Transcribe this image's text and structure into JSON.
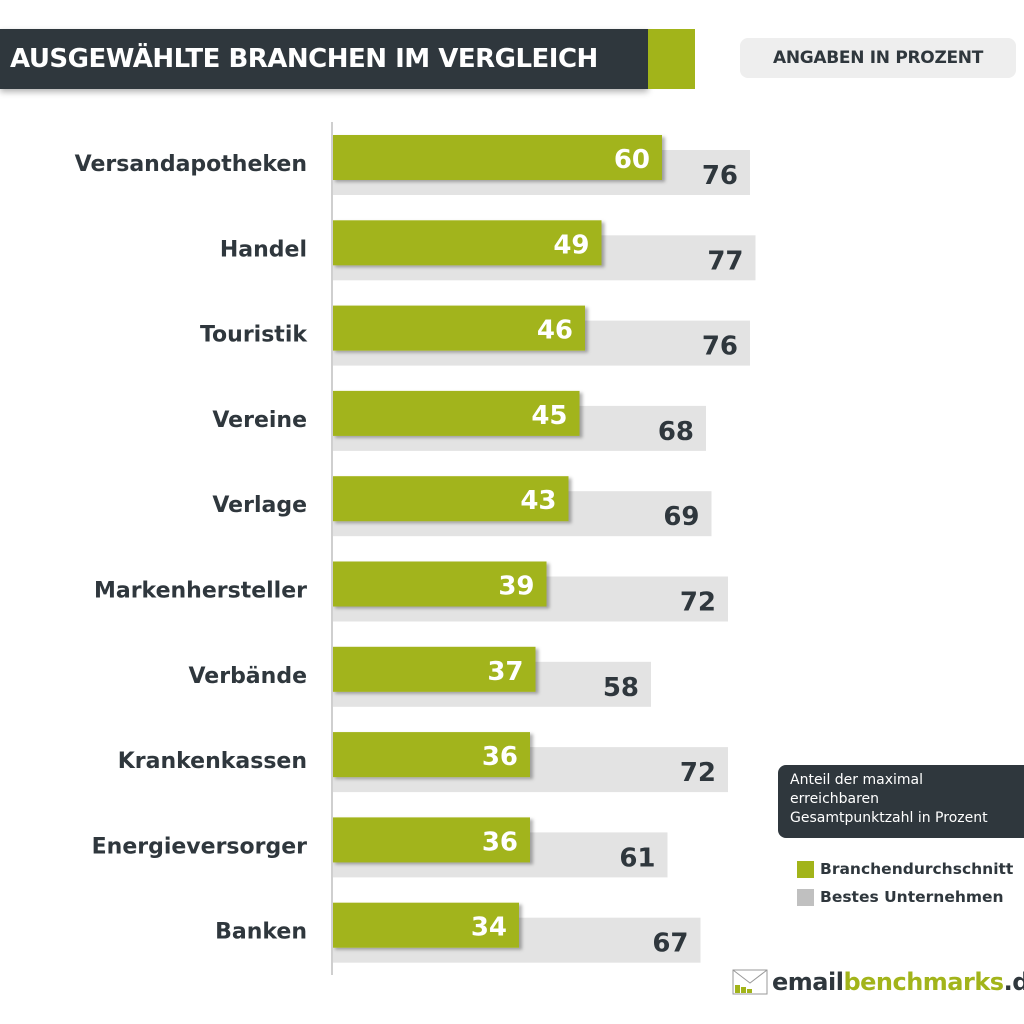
{
  "header": {
    "title": "AUSGEWÄHLTE BRANCHEN IM VERGLEICH",
    "unit_note": "ANGABEN IN PROZENT"
  },
  "colors": {
    "green": "#a2b41a",
    "gray": "#e3e3e3",
    "dark": "#2f373d",
    "legend_gray": "#c0c0c0"
  },
  "chart_data": {
    "type": "bar",
    "orientation": "horizontal",
    "categories": [
      "Versandapotheken",
      "Handel",
      "Touristik",
      "Vereine",
      "Verlage",
      "Markenhersteller",
      "Verbände",
      "Krankenkassen",
      "Energieversorger",
      "Banken"
    ],
    "series": [
      {
        "name": "Branchendurchschnitt",
        "color": "#a2b41a",
        "values": [
          60,
          49,
          46,
          45,
          43,
          39,
          37,
          36,
          36,
          34
        ]
      },
      {
        "name": "Bestes Unternehmen",
        "color": "#e3e3e3",
        "values": [
          76,
          77,
          76,
          68,
          69,
          72,
          58,
          72,
          61,
          67
        ]
      }
    ],
    "xlim": [
      0,
      100
    ],
    "data_labels": true,
    "grid": false,
    "legend_position": "bottom-right"
  },
  "note": {
    "lines": [
      "Anteil der maximal",
      "erreichbaren",
      "Gesamtpunktzahl in Prozent"
    ]
  },
  "logo": {
    "part1": "email",
    "part2": "benchmarks",
    "part3": ".de"
  }
}
